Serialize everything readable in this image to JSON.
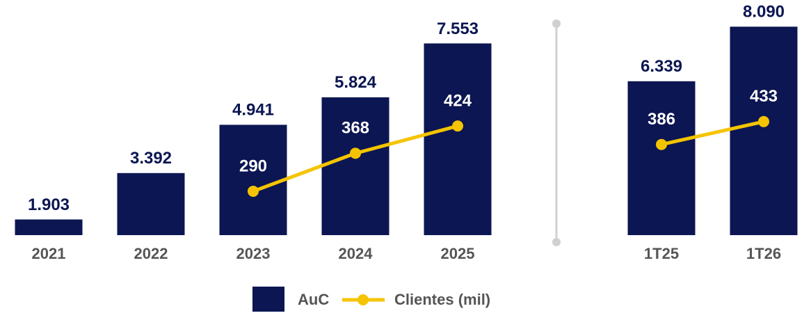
{
  "chart_data": [
    {
      "type": "bar",
      "categories": [
        "2021",
        "2022",
        "2023",
        "2024",
        "2025"
      ],
      "series": [
        {
          "name": "AuC",
          "color": "#0c1652",
          "values": [
            1903,
            3392,
            4941,
            5824,
            7553
          ],
          "value_labels": [
            "1.903",
            "3.392",
            "4.941",
            "5.824",
            "7.553"
          ]
        },
        {
          "name": "Clientes (mil)",
          "color": "#f5c400",
          "axis": "y2",
          "values": [
            null,
            null,
            290,
            368,
            424
          ]
        }
      ],
      "ylim": [
        1400,
        8500
      ],
      "y2lim": [
        200,
        654
      ]
    },
    {
      "type": "bar",
      "categories": [
        "1T25",
        "1T26"
      ],
      "series": [
        {
          "color": "#0c1652",
          "values": [
            6339,
            8090
          ],
          "value_labels": [
            "6.339",
            "8.090"
          ]
        },
        {
          "color": "#f5c400",
          "axis": "y2",
          "values": [
            386,
            433
          ]
        }
      ],
      "ylim": [
        1400,
        8500
      ],
      "y2lim": [
        200,
        654
      ]
    }
  ]
}
